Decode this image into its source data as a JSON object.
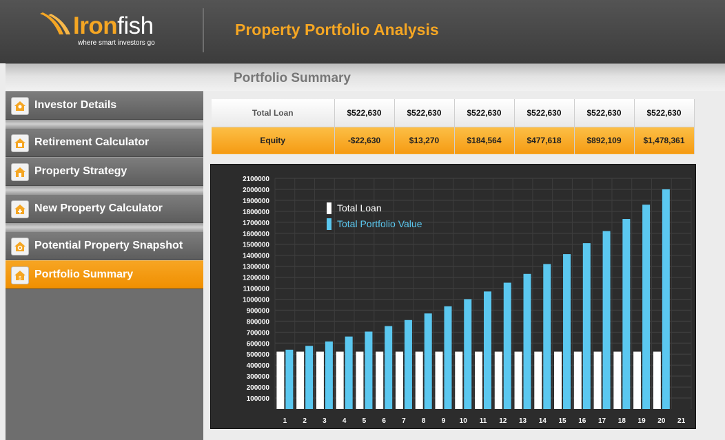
{
  "header": {
    "logo_word_1": "Iron",
    "logo_word_2": "fish",
    "logo_tagline": "where smart investors go",
    "title": "Property Portfolio Analysis"
  },
  "page": {
    "title": "Portfolio Summary"
  },
  "sidebar": {
    "items": [
      {
        "label": "Investor Details",
        "icon": "person-house-icon",
        "active": false
      },
      {
        "label": "Retirement Calculator",
        "icon": "house-calculator-icon",
        "active": false
      },
      {
        "label": "Property Strategy",
        "icon": "house-strategy-icon",
        "active": false
      },
      {
        "label": "New Property Calculator",
        "icon": "house-plus-icon",
        "active": false
      },
      {
        "label": "Potential Property Snapshot",
        "icon": "house-search-icon",
        "active": false
      },
      {
        "label": "Portfolio Summary",
        "icon": "house-dollar-icon",
        "active": true
      }
    ]
  },
  "summary_table": {
    "rows": [
      {
        "label": "Total Loan",
        "values": [
          "$522,630",
          "$522,630",
          "$522,630",
          "$522,630",
          "$522,630",
          "$522,630"
        ]
      },
      {
        "label": "Equity",
        "values": [
          "-$22,630",
          "$13,270",
          "$184,564",
          "$477,618",
          "$892,109",
          "$1,478,361"
        ]
      }
    ]
  },
  "colors": {
    "accent": "#f5a623",
    "loan_bar": "#ffffff",
    "portfolio_bar": "#5bc8f0",
    "chart_bg": "#2c2c2c"
  },
  "chart_data": {
    "type": "bar",
    "categories": [
      "1",
      "2",
      "3",
      "4",
      "5",
      "6",
      "7",
      "8",
      "9",
      "10",
      "11",
      "12",
      "13",
      "14",
      "15",
      "16",
      "17",
      "18",
      "19",
      "20",
      "21"
    ],
    "series": [
      {
        "name": "Total Loan",
        "color": "#ffffff",
        "values": [
          522630,
          522630,
          522630,
          522630,
          522630,
          522630,
          522630,
          522630,
          522630,
          522630,
          522630,
          522630,
          522630,
          522630,
          522630,
          522630,
          522630,
          522630,
          522630,
          522630,
          null
        ]
      },
      {
        "name": "Total Portfolio Value",
        "color": "#5bc8f0",
        "values": [
          540000,
          575000,
          615000,
          660000,
          705000,
          755000,
          810000,
          870000,
          935000,
          1000000,
          1070000,
          1150000,
          1230000,
          1320000,
          1410000,
          1510000,
          1620000,
          1730000,
          1860000,
          2000000,
          null
        ]
      }
    ],
    "ylim": [
      0,
      2100000
    ],
    "yticks": [
      100000,
      200000,
      300000,
      400000,
      500000,
      600000,
      700000,
      800000,
      900000,
      1000000,
      1100000,
      1200000,
      1300000,
      1400000,
      1500000,
      1600000,
      1700000,
      1800000,
      1900000,
      2000000,
      2100000
    ],
    "grid": true,
    "legend_position": "top-left"
  }
}
